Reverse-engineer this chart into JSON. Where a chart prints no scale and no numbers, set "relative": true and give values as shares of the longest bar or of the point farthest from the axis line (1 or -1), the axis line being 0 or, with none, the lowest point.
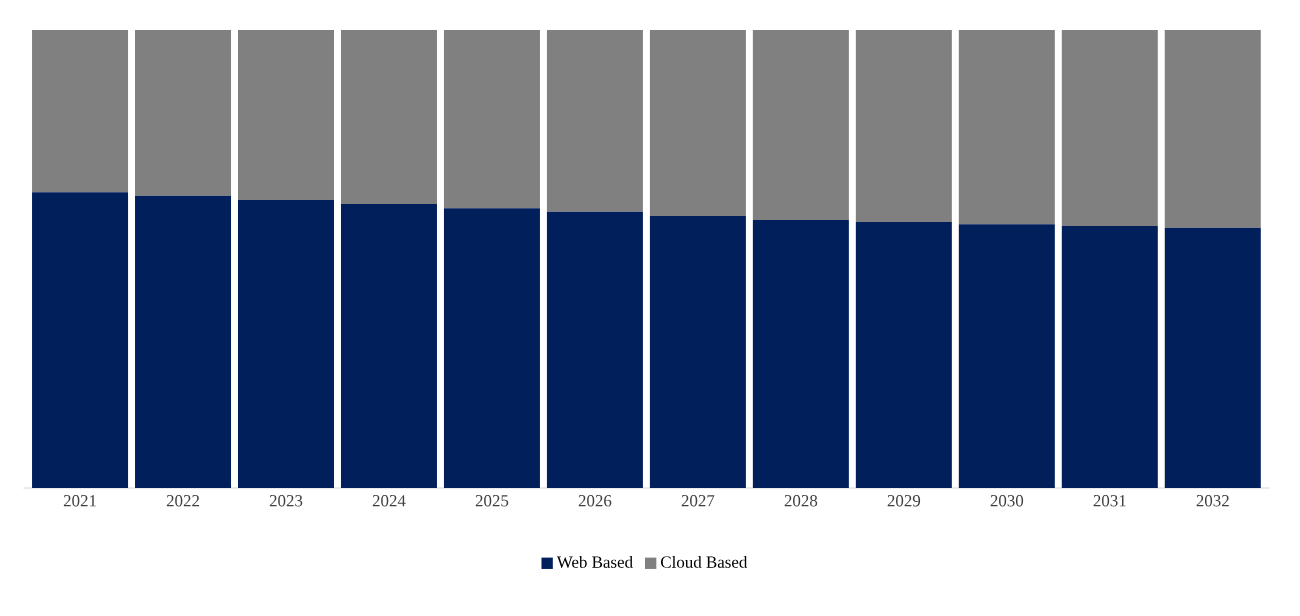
{
  "chart_data": {
    "type": "bar",
    "stacked": true,
    "relative": true,
    "legend": "bottom",
    "categories": [
      "2021",
      "2022",
      "2023",
      "2024",
      "2025",
      "2026",
      "2027",
      "2028",
      "2029",
      "2030",
      "2031",
      "2032"
    ],
    "series": [
      {
        "name": "Web Based",
        "color": "#001f5b",
        "values": [
          0.646,
          0.638,
          0.629,
          0.62,
          0.611,
          0.603,
          0.594,
          0.585,
          0.581,
          0.576,
          0.572,
          0.568
        ]
      },
      {
        "name": "Cloud Based",
        "color": "#808080",
        "values": [
          0.354,
          0.362,
          0.371,
          0.38,
          0.389,
          0.397,
          0.406,
          0.415,
          0.419,
          0.424,
          0.428,
          0.432
        ]
      }
    ]
  }
}
